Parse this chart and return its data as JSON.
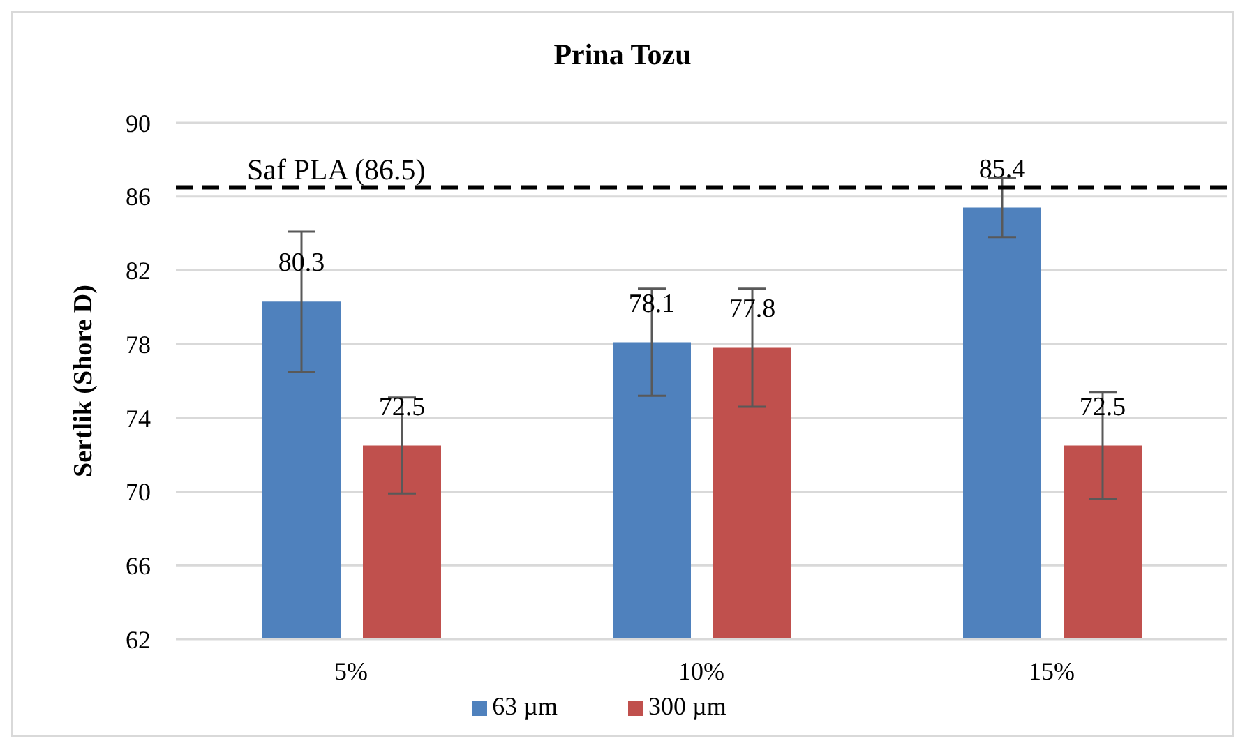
{
  "chart_data": {
    "type": "bar",
    "title": "Prina Tozu",
    "ylabel": "Sertlik (Shore D)",
    "categories": [
      "5%",
      "10%",
      "15%"
    ],
    "series": [
      {
        "name": "63 µm",
        "color": "#4f81bd",
        "values": [
          80.3,
          78.1,
          85.4
        ],
        "errors": [
          3.8,
          2.9,
          1.6
        ]
      },
      {
        "name": "300  µm",
        "color": "#c0504d",
        "values": [
          72.5,
          77.8,
          72.5
        ],
        "errors": [
          2.6,
          3.2,
          2.9
        ]
      }
    ],
    "ylim": [
      62,
      90
    ],
    "yticks": [
      62,
      66,
      70,
      74,
      78,
      82,
      86,
      90
    ],
    "grid": "y",
    "legend": "bottom",
    "data_labels": true,
    "ref_lines": [
      {
        "axis": "y",
        "value": 86.5,
        "label": "Saf PLA (86.5)",
        "color": "#000000",
        "line_style": "dashed"
      }
    ]
  }
}
